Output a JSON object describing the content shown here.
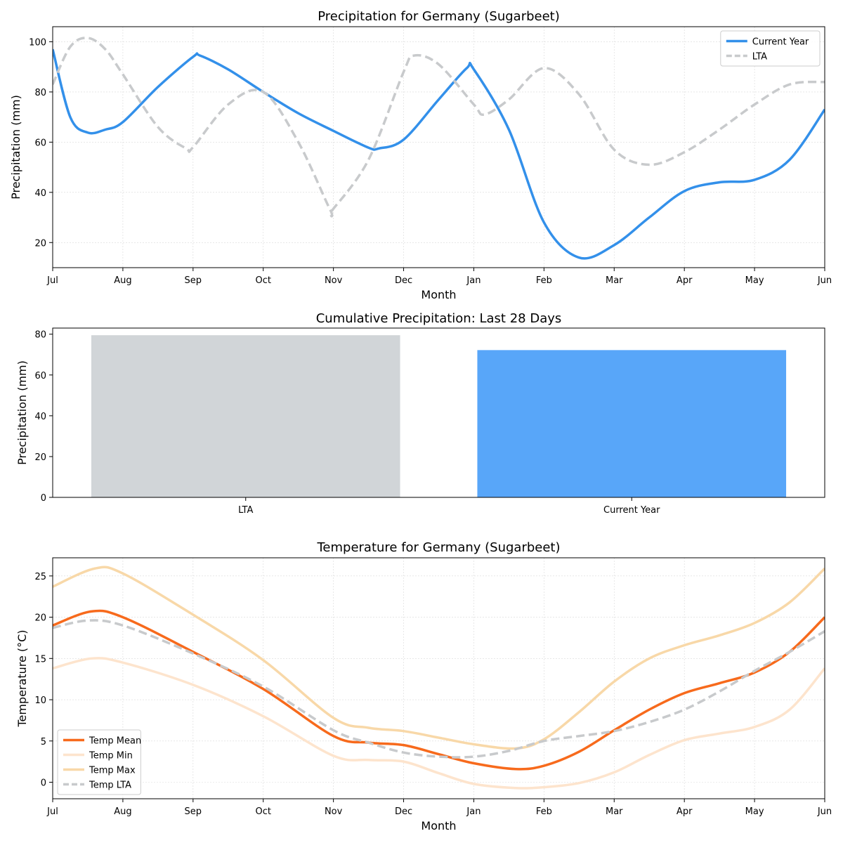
{
  "chart_data": [
    {
      "type": "line",
      "title": "Precipitation for Germany (Sugarbeet)",
      "xlabel": "Month",
      "ylabel": "Precipitation (mm)",
      "x_ticks": [
        "Jul",
        "Aug",
        "Sep",
        "Oct",
        "Nov",
        "Dec",
        "Jan",
        "Feb",
        "Mar",
        "Apr",
        "May",
        "Jun"
      ],
      "xlim": [
        0,
        11
      ],
      "ylim": [
        10,
        106
      ],
      "y_ticks": [
        20,
        40,
        60,
        80,
        100
      ],
      "grid": true,
      "legend": "upper right",
      "series": [
        {
          "name": "Current Year",
          "color": "#3390ea",
          "style": "solid",
          "width": 3.5,
          "x": [
            0,
            0.25,
            0.5,
            0.75,
            1.0,
            1.5,
            2.0,
            2.1,
            2.5,
            3.0,
            3.5,
            4.0,
            4.5,
            4.65,
            5.0,
            5.5,
            5.9,
            6.0,
            6.5,
            7.0,
            7.5,
            8.0,
            8.5,
            9.0,
            9.5,
            10.0,
            10.5,
            11.0
          ],
          "y": [
            97,
            70,
            63.8,
            65,
            68,
            82,
            94,
            94.5,
            89,
            80,
            71.5,
            64.5,
            57.8,
            57.5,
            61,
            77,
            89.5,
            89,
            65,
            28,
            14,
            19,
            30,
            40.5,
            44,
            45,
            53,
            73
          ]
        },
        {
          "name": "LTA",
          "color": "#c8cacc",
          "style": "dashed",
          "width": 3.5,
          "x": [
            0,
            0.25,
            0.5,
            0.75,
            1.0,
            1.5,
            1.9,
            2.0,
            2.5,
            3.0,
            3.5,
            3.95,
            4.0,
            4.5,
            5.0,
            5.15,
            5.5,
            6.0,
            6.15,
            6.5,
            7.0,
            7.5,
            8.0,
            8.5,
            9.0,
            9.5,
            10.0,
            10.5,
            11.0
          ],
          "y": [
            83,
            98,
            101.5,
            97,
            87,
            66,
            57.5,
            58,
            75,
            80,
            60,
            33.3,
            33.5,
            53,
            88,
            94.5,
            91,
            75,
            71,
            77,
            89.5,
            79,
            57,
            51,
            56,
            65,
            75,
            83,
            84
          ]
        }
      ]
    },
    {
      "type": "bar",
      "title": "Cumulative Precipitation: Last 28 Days",
      "ylabel": "Precipitation (mm)",
      "categories": [
        "LTA",
        "Current Year"
      ],
      "values": [
        79.5,
        72.2
      ],
      "colors": [
        "#d1d5d8",
        "#58a6f9"
      ],
      "ylim": [
        0,
        83
      ],
      "y_ticks": [
        0,
        20,
        40,
        60,
        80
      ]
    },
    {
      "type": "line",
      "title": "Temperature for Germany (Sugarbeet)",
      "xlabel": "Month",
      "ylabel": "Temperature (°C)",
      "x_ticks": [
        "Jul",
        "Aug",
        "Sep",
        "Oct",
        "Nov",
        "Dec",
        "Jan",
        "Feb",
        "Mar",
        "Apr",
        "May",
        "Jun"
      ],
      "xlim": [
        0,
        11
      ],
      "ylim": [
        -2,
        27.2
      ],
      "y_ticks": [
        0,
        5,
        10,
        15,
        20,
        25
      ],
      "grid": true,
      "legend": "lower left",
      "series": [
        {
          "name": "Temp Mean",
          "color": "#f76a1c",
          "style": "solid",
          "width": 3.5,
          "x": [
            0,
            0.55,
            1.0,
            2.0,
            3.0,
            4.0,
            4.5,
            5.0,
            5.5,
            6.0,
            6.6,
            7.0,
            7.5,
            8.0,
            8.5,
            9.0,
            9.5,
            10.0,
            10.5,
            11.0
          ],
          "y": [
            19,
            20.7,
            20,
            15.8,
            11.3,
            5.6,
            4.8,
            4.5,
            3.4,
            2.3,
            1.6,
            2.0,
            3.7,
            6.3,
            8.8,
            10.8,
            12,
            13.3,
            15.8,
            20
          ]
        },
        {
          "name": "Temp Min",
          "color": "#fde4cd",
          "style": "solid",
          "width": 3.5,
          "x": [
            0,
            0.55,
            1.0,
            2.0,
            3.0,
            4.0,
            4.5,
            5.0,
            5.5,
            6.0,
            6.6,
            7.0,
            7.5,
            8.0,
            8.5,
            9.0,
            9.5,
            10.0,
            10.5,
            11.0
          ],
          "y": [
            13.8,
            15,
            14.5,
            11.8,
            8.0,
            3.2,
            2.7,
            2.5,
            1.1,
            -0.2,
            -0.7,
            -0.6,
            -0.1,
            1.2,
            3.3,
            5.1,
            5.9,
            6.7,
            8.8,
            13.8
          ]
        },
        {
          "name": "Temp Max",
          "color": "#f8d8a8",
          "style": "solid",
          "width": 3.5,
          "x": [
            0,
            0.6,
            1.0,
            2.0,
            3.0,
            4.0,
            4.5,
            5.0,
            5.5,
            6.0,
            6.6,
            7.0,
            7.5,
            8.0,
            8.5,
            9.0,
            9.5,
            10.0,
            10.5,
            11.0
          ],
          "y": [
            23.7,
            25.9,
            25.3,
            20.3,
            14.8,
            7.8,
            6.6,
            6.2,
            5.4,
            4.6,
            4.1,
            5.2,
            8.5,
            12.2,
            15.0,
            16.6,
            17.8,
            19.3,
            21.8,
            25.9
          ]
        },
        {
          "name": "Temp LTA",
          "color": "#c8cacc",
          "style": "dashed",
          "width": 3.5,
          "x": [
            0,
            0.5,
            1.0,
            2.0,
            3.0,
            4.0,
            4.5,
            5.0,
            5.5,
            6.0,
            6.5,
            7.0,
            7.5,
            8.0,
            8.5,
            9.0,
            9.5,
            10.0,
            10.5,
            11.0
          ],
          "y": [
            18.7,
            19.6,
            19,
            15.6,
            11.6,
            6.3,
            4.8,
            3.6,
            3.1,
            3.1,
            3.8,
            5.0,
            5.6,
            6.2,
            7.3,
            8.8,
            11.0,
            13.5,
            15.8,
            18.3
          ]
        }
      ]
    }
  ]
}
